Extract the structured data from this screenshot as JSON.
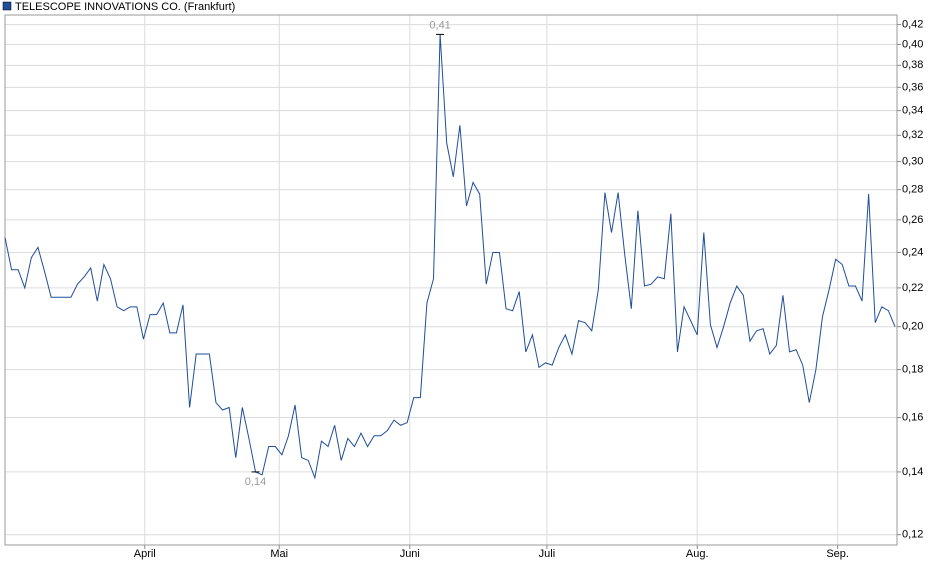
{
  "chart_data": {
    "type": "line",
    "log_scale": true,
    "grid": true,
    "legend": "top-left",
    "series": [
      {
        "name": "TELESCOPE INNOVATIONS CO. (Frankfurt)",
        "color": "#1f4e9a",
        "values": [
          0.249,
          0.23,
          0.23,
          0.22,
          0.237,
          0.243,
          0.229,
          0.215,
          0.215,
          0.215,
          0.215,
          0.222,
          0.226,
          0.231,
          0.213,
          0.233,
          0.225,
          0.21,
          0.208,
          0.21,
          0.21,
          0.194,
          0.206,
          0.206,
          0.212,
          0.197,
          0.197,
          0.211,
          0.164,
          0.187,
          0.187,
          0.187,
          0.166,
          0.163,
          0.164,
          0.145,
          0.164,
          0.152,
          0.14,
          0.139,
          0.149,
          0.149,
          0.146,
          0.153,
          0.165,
          0.145,
          0.144,
          0.138,
          0.151,
          0.149,
          0.157,
          0.144,
          0.152,
          0.149,
          0.154,
          0.149,
          0.153,
          0.153,
          0.155,
          0.159,
          0.157,
          0.158,
          0.168,
          0.168,
          0.212,
          0.225,
          0.41,
          0.314,
          0.289,
          0.328,
          0.269,
          0.285,
          0.277,
          0.222,
          0.24,
          0.24,
          0.209,
          0.208,
          0.218,
          0.188,
          0.196,
          0.181,
          0.183,
          0.182,
          0.19,
          0.196,
          0.187,
          0.203,
          0.202,
          0.198,
          0.219,
          0.278,
          0.252,
          0.278,
          0.239,
          0.209,
          0.266,
          0.221,
          0.222,
          0.226,
          0.225,
          0.264,
          0.188,
          0.21,
          0.203,
          0.196,
          0.252,
          0.201,
          0.19,
          0.2,
          0.212,
          0.221,
          0.216,
          0.193,
          0.198,
          0.199,
          0.187,
          0.191,
          0.216,
          0.188,
          0.189,
          0.182,
          0.166,
          0.18,
          0.205,
          0.219,
          0.236,
          0.233,
          0.221,
          0.221,
          0.213,
          0.277,
          0.202,
          0.21,
          0.208,
          0.2
        ]
      }
    ],
    "xlim": [
      0,
      135
    ],
    "xticks": [
      {
        "value": 21.2,
        "label": "April"
      },
      {
        "value": 41.6,
        "label": "Mai"
      },
      {
        "value": 61.4,
        "label": "Juni"
      },
      {
        "value": 82.2,
        "label": "Juli"
      },
      {
        "value": 105,
        "label": "Aug."
      },
      {
        "value": 126.3,
        "label": "Sep."
      }
    ],
    "ylim": [
      0.117,
      0.43
    ],
    "yticks": [
      {
        "value": 0.12,
        "label": "0,12"
      },
      {
        "value": 0.14,
        "label": "0,14"
      },
      {
        "value": 0.16,
        "label": "0,16"
      },
      {
        "value": 0.18,
        "label": "0,18"
      },
      {
        "value": 0.2,
        "label": "0,20"
      },
      {
        "value": 0.22,
        "label": "0,22"
      },
      {
        "value": 0.24,
        "label": "0,24"
      },
      {
        "value": 0.26,
        "label": "0,26"
      },
      {
        "value": 0.28,
        "label": "0,28"
      },
      {
        "value": 0.3,
        "label": "0,30"
      },
      {
        "value": 0.32,
        "label": "0,32"
      },
      {
        "value": 0.34,
        "label": "0,34"
      },
      {
        "value": 0.36,
        "label": "0,36"
      },
      {
        "value": 0.38,
        "label": "0,38"
      },
      {
        "value": 0.4,
        "label": "0,40"
      },
      {
        "value": 0.42,
        "label": "0,42"
      }
    ],
    "annotations": [
      {
        "label": "0,41",
        "value": 0.41,
        "x": 66,
        "side": "above"
      },
      {
        "label": "0,14",
        "value": 0.14,
        "x": 38,
        "side": "below"
      }
    ]
  }
}
